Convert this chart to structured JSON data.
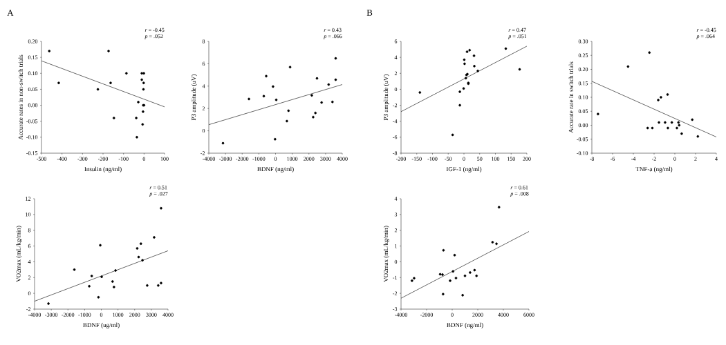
{
  "chart_data": [
    {
      "type": "scatter",
      "title": "A",
      "xlabel": "Insulin (ng/ml)",
      "ylabel": "Accurate rates in non-switch trials",
      "annotations": [
        "*r* = -0.45",
        "*p* = .052"
      ],
      "xlim": [
        -500,
        100
      ],
      "ylim": [
        -0.15,
        0.2
      ],
      "xticks": [
        -500,
        -400,
        -300,
        -200,
        -100,
        0,
        100
      ],
      "yticks": [
        {
          "value": -0.15,
          "label": "-0.15"
        },
        {
          "value": -0.1,
          "label": "-0.10"
        },
        {
          "value": -0.05,
          "label": "-0.05"
        },
        {
          "value": 0,
          "label": "0.00"
        },
        {
          "value": 0.05,
          "label": "0.05"
        },
        {
          "value": 0.1,
          "label": "0.10"
        },
        {
          "value": 0.15,
          "label": "0.15"
        },
        {
          "value": 0.2,
          "label": "0.20"
        }
      ],
      "series": [
        {
          "type": "scatter",
          "marker": "circle",
          "color": "#000000",
          "x": [
            -462,
            -416,
            -225,
            -173,
            -163,
            -147,
            -86,
            -28,
            -38,
            -35,
            -11,
            -1,
            -11,
            -2,
            -3,
            -4,
            0,
            -5,
            -7
          ],
          "values": [
            0.17,
            0.07,
            0.05,
            0.17,
            0.07,
            -0.04,
            0.1,
            0.01,
            -0.04,
            -0.1,
            0.1,
            0.1,
            0.08,
            0.07,
            0.05,
            0.0,
            0.0,
            -0.02,
            -0.06
          ]
        },
        {
          "type": "line",
          "marker": "none",
          "color": "#000000",
          "x": [
            -500,
            100
          ],
          "values": [
            0.139,
            -0.005
          ]
        }
      ]
    },
    {
      "type": "scatter",
      "xlabel": "BDNF (ng/ml)",
      "ylabel": "P3 amplitude (uV)",
      "annotations": [
        "*r* = 0.43",
        "*p* = .066"
      ],
      "xlim": [
        -4000,
        4000
      ],
      "ylim": [
        -2,
        8
      ],
      "xticks": [
        -4000,
        -3000,
        -2000,
        -1000,
        0,
        1000,
        2000,
        3000,
        4000
      ],
      "yticks": [
        -2,
        0,
        2,
        4,
        6,
        8
      ],
      "series": [
        {
          "type": "scatter",
          "marker": "circle",
          "color": "#000000",
          "x": [
            -3150,
            -1593,
            -703,
            -559,
            -150,
            43,
            -29,
            681,
            777,
            874,
            2173,
            2257,
            2390,
            2486,
            2762,
            3183,
            3412,
            3605,
            3605
          ],
          "values": [
            -1.11,
            2.85,
            3.1,
            4.89,
            3.96,
            2.77,
            -0.75,
            0.87,
            1.8,
            5.7,
            3.17,
            1.23,
            1.6,
            4.69,
            2.53,
            4.14,
            2.59,
            6.48,
            4.57
          ]
        },
        {
          "type": "line",
          "marker": "none",
          "color": "#000000",
          "x": [
            -4000,
            4000
          ],
          "values": [
            0.55,
            4.14
          ]
        }
      ]
    },
    {
      "type": "scatter",
      "title": "B",
      "xlabel": "IGF-1 (ng/ml)",
      "ylabel": "P3 amplitude (uV)",
      "annotations": [
        "*r* = 0.47",
        "*p* = .051"
      ],
      "xlim": [
        -200,
        200
      ],
      "ylim": [
        -8,
        6
      ],
      "xticks": [
        -200,
        -150,
        -100,
        -50,
        0,
        50,
        100,
        150,
        200
      ],
      "yticks": [
        -8,
        -6,
        -4,
        -2,
        0,
        2,
        4,
        6
      ],
      "series": [
        {
          "type": "scatter",
          "marker": "circle",
          "color": "#000000",
          "x": [
            -140,
            -36,
            -13,
            -13,
            -1,
            1,
            2,
            6,
            8,
            11,
            10,
            18,
            14,
            14,
            32,
            33,
            44,
            133,
            177
          ],
          "values": [
            -0.4,
            -5.7,
            -0.3,
            -2.0,
            0.1,
            3.7,
            3.2,
            1.4,
            1.8,
            1.9,
            4.7,
            4.9,
            0.7,
            0.8,
            4.2,
            2.9,
            2.3,
            5.1,
            2.5
          ]
        },
        {
          "type": "line",
          "marker": "none",
          "color": "#000000",
          "x": [
            -200,
            200
          ],
          "values": [
            -2.8,
            5.4
          ]
        }
      ]
    },
    {
      "type": "scatter",
      "xlabel": "TNF-a (ng/ml)",
      "ylabel": "Accurate rate in switch trials",
      "annotations": [
        "*r* = -0.45",
        "*p* = .064"
      ],
      "xlim": [
        -8,
        4
      ],
      "ylim": [
        -0.1,
        0.3
      ],
      "xticks": [
        -8,
        -6,
        -4,
        -2,
        0,
        2,
        4
      ],
      "yticks": [
        {
          "value": -0.1,
          "label": "-0.10"
        },
        {
          "value": -0.05,
          "label": "-0.05"
        },
        {
          "value": 0,
          "label": "0.00"
        },
        {
          "value": 0.05,
          "label": "0.05"
        },
        {
          "value": 0.1,
          "label": "0.10"
        },
        {
          "value": 0.15,
          "label": "0.15"
        },
        {
          "value": 0.2,
          "label": "0.20"
        },
        {
          "value": 0.25,
          "label": "0.25"
        },
        {
          "value": 0.3,
          "label": "0.30"
        }
      ],
      "series": [
        {
          "type": "scatter",
          "marker": "circle",
          "color": "#000000",
          "x": [
            -7.41,
            -4.51,
            -2.45,
            -2.62,
            -2.17,
            -1.6,
            -1.34,
            -1.53,
            -0.94,
            -0.7,
            -0.67,
            -0.29,
            0.2,
            0.35,
            0.42,
            0.66,
            1.68,
            2.22
          ],
          "values": [
            0.04,
            0.21,
            0.26,
            -0.01,
            -0.01,
            0.09,
            0.1,
            0.01,
            0.01,
            0.11,
            -0.01,
            0.01,
            -0.01,
            0.01,
            0.0,
            -0.03,
            0.02,
            -0.04
          ]
        },
        {
          "type": "line",
          "marker": "none",
          "color": "#000000",
          "x": [
            -8,
            4
          ],
          "values": [
            0.157,
            -0.042
          ]
        }
      ]
    },
    {
      "type": "scatter",
      "xlabel": "BDNF (ug/ml)",
      "ylabel": "VO2max (mL/kg/min)",
      "annotations": [
        "*r* = 0.51",
        "*p* = .027"
      ],
      "xlim": [
        -4000,
        4000
      ],
      "ylim": [
        -2,
        12
      ],
      "xticks": [
        -4000,
        -3000,
        -2000,
        -1000,
        0,
        1000,
        2000,
        3000,
        4000
      ],
      "yticks": [
        -2,
        0,
        2,
        4,
        6,
        8,
        10,
        12
      ],
      "series": [
        {
          "type": "scatter",
          "marker": "circle",
          "color": "#000000",
          "x": [
            -3168,
            -1615,
            -722,
            -575,
            -171,
            -61,
            24,
            673,
            758,
            856,
            2153,
            2239,
            2373,
            2471,
            2752,
            3168,
            3413,
            3584,
            3584
          ],
          "values": [
            -1.3,
            3.0,
            0.9,
            2.2,
            -0.5,
            6.1,
            2.1,
            1.5,
            0.8,
            2.9,
            5.7,
            4.6,
            6.3,
            4.2,
            1.0,
            7.1,
            1.0,
            10.8,
            1.3
          ]
        },
        {
          "type": "line",
          "marker": "none",
          "color": "#000000",
          "x": [
            -4000,
            4000
          ],
          "values": [
            -1.0,
            5.4
          ]
        }
      ]
    },
    {
      "type": "scatter",
      "xlabel": "BDNF (ng/ml)",
      "ylabel": "VO2max (mL/kg/min)",
      "annotations": [
        "*r* = 0.61",
        "*p* = .008"
      ],
      "xlim": [
        -4000,
        6000
      ],
      "ylim": [
        -3,
        4
      ],
      "xticks": [
        -4000,
        -2000,
        0,
        2000,
        4000,
        6000
      ],
      "yticks": [
        -3,
        -2,
        -1,
        0,
        1,
        2,
        3,
        4
      ],
      "series": [
        {
          "type": "scatter",
          "marker": "circle",
          "color": "#000000",
          "x": [
            -3144,
            -2976,
            -942,
            -758,
            -682,
            -713,
            -162,
            67,
            190,
            297,
            817,
            1000,
            1398,
            1749,
            1902,
            3156,
            3462,
            3661
          ],
          "values": [
            -1.2,
            -1.04,
            -0.79,
            -0.81,
            0.73,
            -2.05,
            -1.2,
            -0.61,
            0.42,
            -1.03,
            -2.12,
            -0.89,
            -0.68,
            -0.53,
            -0.89,
            1.24,
            1.14,
            3.46
          ]
        },
        {
          "type": "line",
          "marker": "none",
          "color": "#000000",
          "x": [
            -4000,
            6000
          ],
          "values": [
            -2.31,
            1.92
          ]
        }
      ]
    }
  ]
}
